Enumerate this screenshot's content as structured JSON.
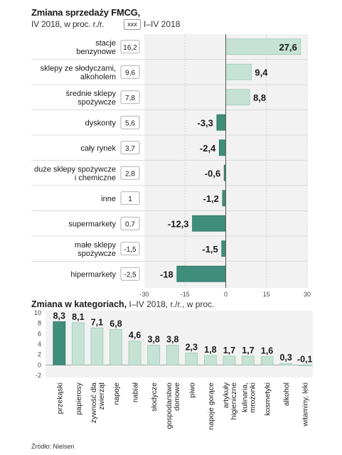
{
  "header": {
    "title": "Zmiana sprzedaży FMCG,",
    "subtitle": "IV 2018, w proc. r./r.",
    "legend_box": "xxx",
    "legend_label": "I–IV 2018"
  },
  "colors": {
    "positive": "#c5e2d5",
    "negative": "#3e8e7a",
    "panel": "#f2f2f2",
    "highlight": "#3e8e7a"
  },
  "chart_data": [
    {
      "type": "bar",
      "orientation": "horizontal",
      "categories": [
        "stacje\nbenzynowe",
        "sklepy ze słodyczami,\nalkoholem",
        "średnie sklepy\nspożywcze",
        "dyskonty",
        "cały rynek",
        "duże sklepy spożywcze\ni chemiczne",
        "inne",
        "supermarkety",
        "małe sklepy\nspożywcze",
        "hipermarkety"
      ],
      "series": [
        {
          "name": "I–IV 2018",
          "values": [
            27.6,
            9.4,
            8.8,
            -3.3,
            -2.4,
            -0.6,
            -1.2,
            -12.3,
            -1.5,
            -18
          ]
        },
        {
          "name": "xxx",
          "values": [
            16.2,
            9.6,
            7.8,
            5.6,
            3.7,
            2.8,
            1,
            0.7,
            -1.5,
            -2.5
          ]
        }
      ],
      "value_labels": [
        "27,6",
        "9,4",
        "8,8",
        "-3,3",
        "-2,4",
        "-0,6",
        "-1,2",
        "-12,3",
        "-1,5",
        "-18"
      ],
      "box_labels": [
        "16,2",
        "9,6",
        "7,8",
        "5,6",
        "3,7",
        "2,8",
        "1",
        "0,7",
        "-1,5",
        "-2,5"
      ],
      "xlim": [
        -30,
        30
      ],
      "xticks": [
        "-30",
        "-15",
        "0",
        "15",
        "30"
      ]
    },
    {
      "type": "bar",
      "title": "Zmiana w kategoriach,",
      "subtitle": "I–IV 2018, r./r., w proc.",
      "categories": [
        "przekąski",
        "papierosy",
        "żywność dla\nzwierząt",
        "napoje",
        "nabiał",
        "słodycze",
        "gospodarstwo\ndomowe",
        "piwo",
        "napoje gorące",
        "artykuły\nhigieniczne",
        "kulinaria,\nmrożonki",
        "kosmetyki",
        "alkohol",
        "witaminy, leki"
      ],
      "values": [
        8.3,
        8.1,
        7.1,
        6.8,
        4.6,
        3.8,
        3.8,
        2.3,
        1.8,
        1.7,
        1.7,
        1.6,
        0.3,
        -0.1
      ],
      "value_labels": [
        "8,3",
        "8,1",
        "7,1",
        "6,8",
        "4,6",
        "3,8",
        "3,8",
        "2,3",
        "1,8",
        "1,7",
        "1,7",
        "1,6",
        "0,3",
        "-0,1"
      ],
      "ylim": [
        -2,
        10
      ],
      "yticks": [
        "10",
        "8",
        "6",
        "4",
        "2",
        "0",
        "-2"
      ],
      "highlight_index": 0
    }
  ],
  "source": "Źródło: Nielsen"
}
